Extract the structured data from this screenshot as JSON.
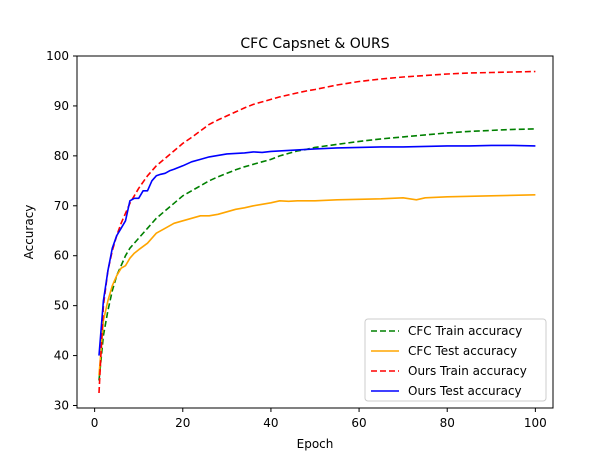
{
  "chart_data": {
    "type": "line",
    "title": "CFC Capsnet & OURS",
    "xlabel": "Epoch",
    "ylabel": "Accuracy",
    "xlim": [
      -4,
      104
    ],
    "ylim": [
      29.5,
      100
    ],
    "xticks": [
      0,
      20,
      40,
      60,
      80,
      100
    ],
    "yticks": [
      30,
      40,
      50,
      60,
      70,
      80,
      90,
      100
    ],
    "grid": false,
    "legend_position": "lower-right",
    "series": [
      {
        "name": "CFC Train accuracy",
        "color": "#008000",
        "style": "dashed",
        "x": [
          1,
          2,
          3,
          4,
          5,
          6,
          7,
          8,
          9,
          10,
          12,
          14,
          16,
          18,
          20,
          22,
          24,
          26,
          28,
          30,
          32,
          34,
          36,
          38,
          40,
          42,
          44,
          46,
          48,
          50,
          55,
          60,
          65,
          70,
          75,
          80,
          85,
          90,
          95,
          100
        ],
        "y": [
          35,
          44,
          49,
          53,
          56,
          58,
          60,
          61.5,
          62.5,
          63.5,
          65.5,
          67.5,
          69,
          70.5,
          72,
          73,
          74,
          75,
          75.8,
          76.5,
          77.2,
          77.8,
          78.3,
          78.8,
          79.3,
          80,
          80.5,
          81,
          81.3,
          81.7,
          82.3,
          82.9,
          83.4,
          83.8,
          84.2,
          84.6,
          84.9,
          85.1,
          85.3,
          85.4
        ]
      },
      {
        "name": "CFC Test accuracy",
        "color": "#FFA500",
        "style": "solid",
        "x": [
          1,
          2,
          3,
          4,
          5,
          6,
          7,
          8,
          9,
          10,
          12,
          14,
          16,
          18,
          20,
          22,
          24,
          26,
          28,
          30,
          32,
          34,
          36,
          38,
          40,
          42,
          44,
          46,
          48,
          50,
          55,
          60,
          65,
          70,
          73,
          75,
          80,
          85,
          90,
          95,
          100
        ],
        "y": [
          36,
          47,
          51,
          54,
          56,
          57.5,
          58,
          59.5,
          60.5,
          61.2,
          62.5,
          64.5,
          65.5,
          66.5,
          67,
          67.5,
          68,
          68,
          68.3,
          68.8,
          69.3,
          69.6,
          70,
          70.3,
          70.6,
          71,
          70.9,
          71,
          71,
          71,
          71.2,
          71.3,
          71.4,
          71.6,
          71.2,
          71.6,
          71.8,
          71.9,
          72,
          72.1,
          72.2
        ]
      },
      {
        "name": "Ours Train accuracy",
        "color": "#FF0000",
        "style": "dashed",
        "x": [
          1,
          2,
          3,
          4,
          5,
          6,
          7,
          8,
          9,
          10,
          12,
          14,
          16,
          18,
          20,
          22,
          24,
          26,
          28,
          30,
          32,
          34,
          36,
          38,
          40,
          42,
          44,
          46,
          48,
          50,
          55,
          60,
          65,
          70,
          75,
          80,
          85,
          90,
          95,
          100
        ],
        "y": [
          32.5,
          50,
          57,
          61,
          64,
          66.5,
          68.5,
          70.5,
          72,
          73.5,
          76,
          78,
          79.5,
          81,
          82.5,
          83.7,
          85,
          86.3,
          87.2,
          88,
          88.8,
          89.6,
          90.3,
          90.8,
          91.3,
          91.8,
          92.2,
          92.6,
          93,
          93.3,
          94.2,
          94.9,
          95.4,
          95.8,
          96.1,
          96.4,
          96.6,
          96.7,
          96.8,
          96.9
        ]
      },
      {
        "name": "Ours Test accuracy",
        "color": "#0000FF",
        "style": "solid",
        "x": [
          1,
          2,
          3,
          4,
          5,
          6,
          7,
          8,
          9,
          10,
          11,
          12,
          13,
          14,
          15,
          16,
          17,
          18,
          20,
          22,
          24,
          26,
          28,
          30,
          32,
          34,
          36,
          38,
          40,
          42,
          44,
          46,
          48,
          50,
          55,
          60,
          65,
          70,
          75,
          80,
          85,
          90,
          95,
          100
        ],
        "y": [
          40,
          51,
          57,
          61.5,
          64,
          65.5,
          67,
          71,
          71.5,
          71.5,
          73,
          73,
          75,
          76,
          76.3,
          76.5,
          77,
          77.3,
          78,
          78.8,
          79.3,
          79.8,
          80.1,
          80.4,
          80.5,
          80.6,
          80.8,
          80.7,
          80.9,
          81,
          81.1,
          81.2,
          81.3,
          81.4,
          81.6,
          81.7,
          81.8,
          81.8,
          81.9,
          82,
          82,
          82.1,
          82.1,
          82
        ]
      }
    ]
  }
}
